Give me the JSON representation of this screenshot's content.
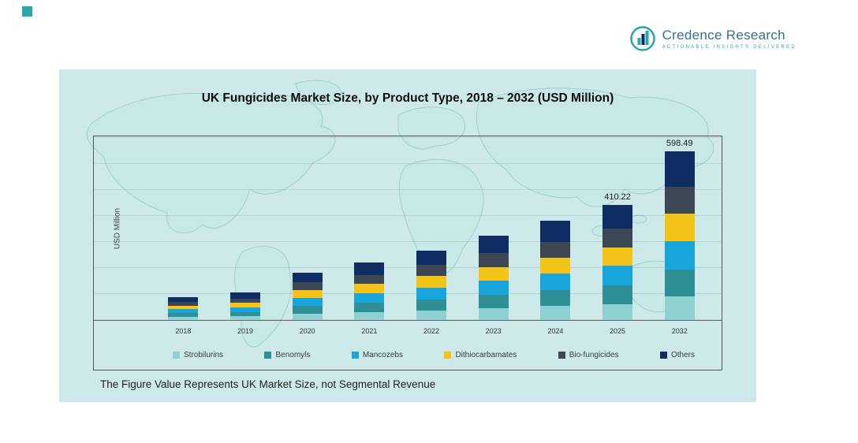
{
  "page": {
    "logo": {
      "name": "Credence Research",
      "tagline": "Actionable Insights Delivered"
    },
    "title": "UK Fungicides Market Size, by Product Type, 2018 – 2032 (USD Million)",
    "ylabel": "USD Million",
    "footnote": "The Figure Value Represents UK Market Size, not Segmental Revenue"
  },
  "colors": {
    "panel_background": "#cde9e9",
    "accent_teal": "#2aa7a7",
    "logo_blue": "#35708e",
    "strobilurins": "#8fd1d1",
    "benomyls": "#2f8f96",
    "mancozebs": "#18a5dc",
    "dithiocarbamates": "#f3c317",
    "bio_fungicides": "#3d4653",
    "others": "#0f2d63"
  },
  "chart_data": {
    "type": "bar",
    "stacked": true,
    "title": "UK Fungicides Market Size, by Product Type, 2018 – 2032 (USD Million)",
    "xlabel": "",
    "ylabel": "USD Million",
    "ylim": [
      0,
      650
    ],
    "grid": true,
    "legend_position": "bottom",
    "categories": [
      "2018",
      "2019",
      "2020",
      "2021",
      "2022",
      "2023",
      "2024",
      "2025",
      "2032"
    ],
    "totals": [
      82.4,
      97.6,
      168.9,
      203.5,
      247.1,
      299.8,
      352.4,
      410.22,
      598.49
    ],
    "series": [
      {
        "name": "Strobilurins",
        "color": "#8fd1d1",
        "values": [
          11.5,
          13.7,
          23.6,
          28.5,
          34.6,
          42.0,
          49.3,
          57.4,
          83.8
        ]
      },
      {
        "name": "Benomyls",
        "color": "#2f8f96",
        "values": [
          13.2,
          15.6,
          27.0,
          32.6,
          39.5,
          48.0,
          56.4,
          65.6,
          95.8
        ]
      },
      {
        "name": "Mancozebs",
        "color": "#18a5dc",
        "values": [
          14.0,
          16.6,
          28.7,
          34.6,
          42.0,
          51.0,
          59.9,
          69.8,
          101.7
        ]
      },
      {
        "name": "Dithiocarbamates",
        "color": "#f3c317",
        "values": [
          13.2,
          15.6,
          27.0,
          32.6,
          39.5,
          48.0,
          56.4,
          65.6,
          95.8
        ]
      },
      {
        "name": "Bio-fungicides",
        "color": "#3d4653",
        "values": [
          13.2,
          15.6,
          27.0,
          32.6,
          39.5,
          48.0,
          56.4,
          65.6,
          95.8
        ]
      },
      {
        "name": "Others",
        "color": "#0f2d63",
        "values": [
          17.3,
          20.5,
          35.6,
          42.6,
          52.0,
          62.8,
          74.0,
          86.22,
          125.59
        ]
      }
    ],
    "value_labels": [
      {
        "category": "2025",
        "text": "410.22"
      },
      {
        "category": "2032",
        "text": "598.49"
      }
    ]
  }
}
